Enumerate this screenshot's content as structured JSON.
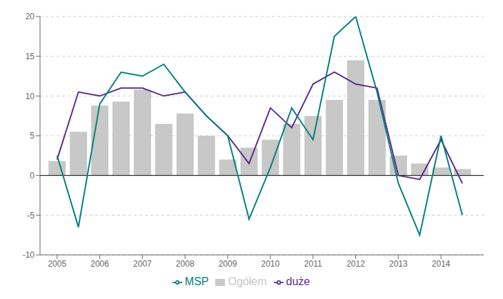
{
  "chart_data": {
    "type": "bar",
    "x": [
      2005.0,
      2005.5,
      2006.0,
      2006.5,
      2007.0,
      2007.5,
      2008.0,
      2008.5,
      2009.0,
      2009.5,
      2010.0,
      2010.5,
      2011.0,
      2011.5,
      2012.0,
      2012.5,
      2013.0,
      2013.5,
      2014.0,
      2014.5
    ],
    "series": [
      {
        "name": "Ogółem",
        "type": "bar",
        "color": "#c8c8c8",
        "values": [
          1.8,
          5.5,
          8.8,
          9.3,
          10.8,
          6.5,
          7.8,
          5.0,
          2.0,
          3.5,
          4.5,
          6.5,
          7.5,
          9.5,
          14.5,
          9.5,
          2.5,
          1.5,
          1.0,
          0.8
        ]
      },
      {
        "name": "duże",
        "type": "line",
        "color": "#5b2d8e",
        "values": [
          2.0,
          10.5,
          10.0,
          11.0,
          11.0,
          10.0,
          10.5,
          7.5,
          5.0,
          1.5,
          8.5,
          6.0,
          11.5,
          13.0,
          11.5,
          11.0,
          0.0,
          -0.5,
          4.5,
          -1.0
        ]
      },
      {
        "name": "MSP",
        "type": "line",
        "color": "#008080",
        "values": [
          2.5,
          -6.5,
          9.0,
          13.0,
          12.5,
          14.0,
          10.5,
          7.5,
          5.0,
          -5.5,
          1.0,
          8.5,
          4.5,
          17.5,
          20.0,
          10.5,
          -1.0,
          -7.5,
          5.0,
          -5.0
        ]
      }
    ],
    "xlim": [
      2004.6,
      2015.0
    ],
    "xticks": [
      2005,
      2006,
      2007,
      2008,
      2009,
      2010,
      2011,
      2012,
      2013,
      2014
    ],
    "ylim": [
      -10,
      20
    ],
    "yticks": [
      -10,
      -5,
      0,
      5,
      10,
      15,
      20
    ],
    "grid": true,
    "legend": "bottom"
  }
}
